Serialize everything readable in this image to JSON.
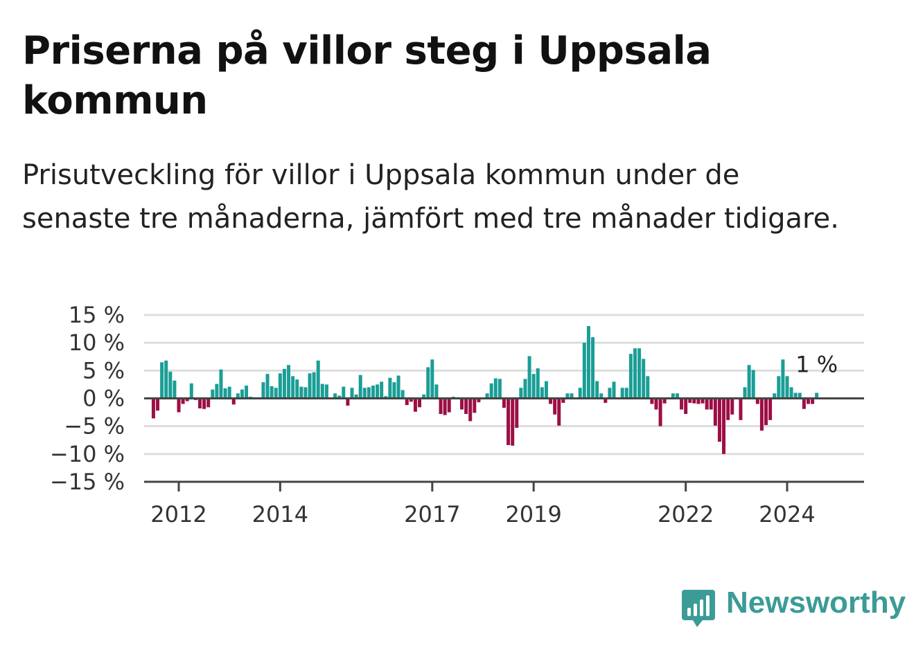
{
  "title": "Priserna på villor steg i Uppsala kommun",
  "subtitle": "Prisutveckling för villor i Uppsala kommun under de senaste tre månaderna, jämfört med tre månader tidigare.",
  "brand": {
    "name": "Newsworthy",
    "color": "#3b9b97"
  },
  "colors": {
    "positive": "#1a9e96",
    "negative": "#9c0f45",
    "grid": "#dddddd",
    "axis": "#444444"
  },
  "chart_data": {
    "type": "bar",
    "x_start": "2011-07",
    "frequency": "monthly",
    "ylim": [
      -15,
      15
    ],
    "yticks": [
      15,
      10,
      5,
      0,
      -5,
      -10,
      -15
    ],
    "ytick_labels": [
      "15 %",
      "10 %",
      "5 %",
      "0 %",
      "−5 %",
      "−10 %",
      "−15 %"
    ],
    "xticks": [
      2012,
      2014,
      2017,
      2019,
      2022,
      2024
    ],
    "grid": true,
    "values": [
      -3.6,
      -2.2,
      6.5,
      6.8,
      4.8,
      3.2,
      -2.5,
      -1.0,
      -0.5,
      2.7,
      -0.3,
      -1.8,
      -1.9,
      -1.6,
      1.6,
      2.6,
      5.2,
      1.8,
      2.1,
      -1.1,
      0.9,
      1.6,
      2.3,
      0.3,
      0.2,
      0.2,
      2.9,
      4.4,
      2.2,
      1.9,
      4.5,
      5.3,
      6.0,
      4.0,
      3.4,
      2.1,
      2.0,
      4.5,
      4.7,
      6.8,
      2.6,
      2.5,
      0.0,
      0.9,
      0.5,
      2.1,
      -1.3,
      1.9,
      0.7,
      4.2,
      1.9,
      2.0,
      2.3,
      2.5,
      3.0,
      0.4,
      3.7,
      2.9,
      4.1,
      1.5,
      -1.2,
      -0.6,
      -2.4,
      -1.6,
      0.7,
      5.6,
      7.0,
      2.5,
      -2.8,
      -3.0,
      -2.5,
      0.3,
      0.2,
      -2.0,
      -2.8,
      -4.1,
      -2.6,
      -0.7,
      0.0,
      0.9,
      2.7,
      3.6,
      3.5,
      -1.7,
      -8.4,
      -8.5,
      -5.3,
      1.9,
      3.5,
      7.6,
      4.4,
      5.4,
      2.0,
      3.1,
      -1.0,
      -2.9,
      -4.9,
      -0.8,
      0.9,
      0.9,
      0.0,
      1.9,
      10.0,
      13.0,
      11.0,
      3.1,
      0.9,
      -0.8,
      1.9,
      3.0,
      0.0,
      1.9,
      1.9,
      8.0,
      9.0,
      9.0,
      7.1,
      4.0,
      -1.0,
      -2.0,
      -5.0,
      -0.9,
      0.0,
      0.9,
      0.9,
      -2.0,
      -2.8,
      -0.8,
      -0.9,
      -1.0,
      -0.9,
      -2.0,
      -2.0,
      -4.9,
      -7.8,
      -10.0,
      -3.9,
      -2.9,
      0.0,
      -3.9,
      2.0,
      6.0,
      5.1,
      -1.0,
      -5.8,
      -4.8,
      -3.9,
      0.9,
      4.0,
      7.0,
      4.0,
      2.0,
      1.0,
      1.0,
      -1.9,
      -1.0,
      -1.0,
      1.0
    ],
    "last_label": "1 %"
  }
}
